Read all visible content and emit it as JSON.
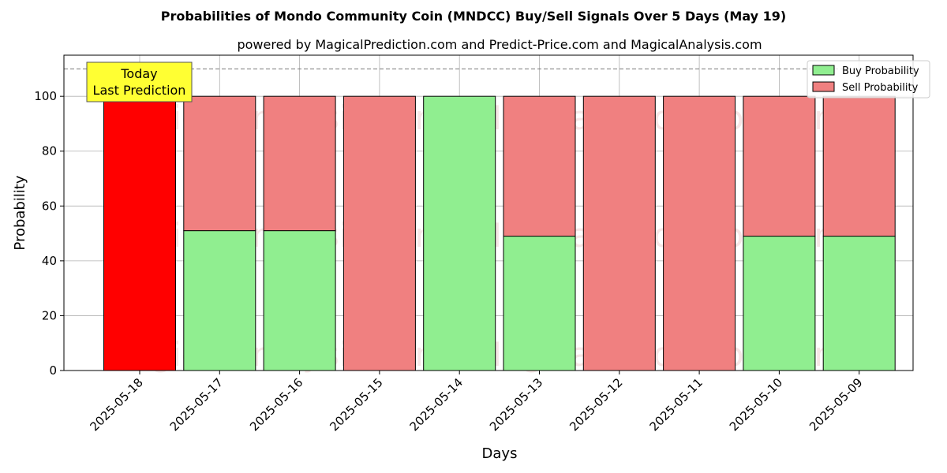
{
  "chart_data": {
    "type": "bar",
    "stacked": true,
    "title": "Probabilities of Mondo Community Coin (MNDCC) Buy/Sell Signals Over 5 Days (May 19)",
    "subtitle": "powered by MagicalPrediction.com and Predict-Price.com and MagicalAnalysis.com",
    "xlabel": "Days",
    "ylabel": "Probability",
    "ylim": [
      0,
      115
    ],
    "yticks": [
      0,
      20,
      40,
      60,
      80,
      100
    ],
    "grid": true,
    "legend_position": "top-right",
    "categories": [
      "2025-05-18",
      "2025-05-17",
      "2025-05-16",
      "2025-05-15",
      "2025-05-14",
      "2025-05-13",
      "2025-05-12",
      "2025-05-11",
      "2025-05-10",
      "2025-05-09"
    ],
    "series": [
      {
        "name": "Buy Probability",
        "color": "#90ee90",
        "values": [
          0,
          51,
          51,
          0,
          100,
          49,
          0,
          0,
          49,
          49
        ]
      },
      {
        "name": "Sell Probability",
        "color": "#f08080",
        "values": [
          100,
          49,
          49,
          100,
          0,
          51,
          100,
          100,
          51,
          51
        ]
      }
    ],
    "highlight": {
      "index": 0,
      "color": "#ff0000"
    },
    "reference_line": {
      "y": 110,
      "style": "dashed"
    },
    "annotation": {
      "lines": [
        "Today",
        "Last Prediction"
      ],
      "background": "#ffff33"
    },
    "watermarks": [
      "MagicalAnalysis.com",
      "MagicalPrediction.com"
    ]
  }
}
